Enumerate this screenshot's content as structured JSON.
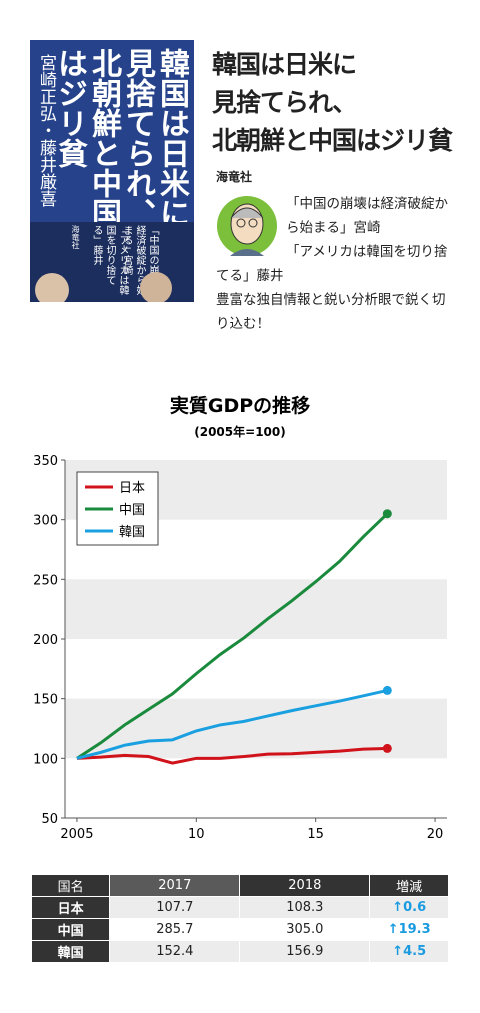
{
  "book": {
    "title": "韓国は日米に見捨てられ、北朝鮮と中国はジリ貧",
    "authors": "宮崎正弘・藤井厳喜",
    "quote_1": "「中国の崩壊は経済破綻から始まる」宮崎",
    "quote_2": "「アメリカは韓国を切り捨てる」藤井",
    "publisher": "海竜社"
  },
  "heading": {
    "title_lines": [
      "韓国は日米に",
      "見捨てられ、",
      "北朝鮮と中国はジリ貧"
    ],
    "publisher": "海竜社"
  },
  "description": {
    "lines": [
      "「中国の崩壊は経済破綻から始まる」宮崎",
      "「アメリカは韓国を切り捨てる」藤井",
      "豊富な独自情報と鋭い分析眼で鋭く切り込む！"
    ]
  },
  "chart_data": {
    "type": "line",
    "title": "実質GDPの推移",
    "subtitle": "(2005年=100)",
    "x": [
      2005,
      2006,
      2007,
      2008,
      2009,
      2010,
      2011,
      2012,
      2013,
      2014,
      2015,
      2016,
      2017,
      2018
    ],
    "series": [
      {
        "name": "日本",
        "color": "#d0121b",
        "values": [
          100,
          101,
          102.5,
          101.5,
          96,
          100,
          100,
          101.5,
          103.5,
          103.8,
          105,
          106,
          107.7,
          108.3
        ]
      },
      {
        "name": "中国",
        "color": "#1a8a3c",
        "values": [
          100,
          113,
          128,
          141,
          154,
          171,
          187,
          201,
          217,
          232,
          248,
          265,
          285.7,
          305.0
        ]
      },
      {
        "name": "韓国",
        "color": "#1aa0e0",
        "values": [
          100,
          105,
          111,
          114.5,
          115.5,
          123,
          128,
          131,
          135.5,
          140,
          144,
          148,
          152.4,
          156.9
        ]
      }
    ],
    "xlim": [
      2004.5,
      2020.5
    ],
    "xticks": [
      2005,
      {
        "value": 2010,
        "label": "10"
      },
      {
        "value": 2015,
        "label": "15"
      },
      {
        "value": 2020,
        "label": "20"
      }
    ],
    "ylim": [
      50,
      350
    ],
    "yticks": [
      50,
      100,
      150,
      200,
      250,
      300,
      350
    ],
    "grid": "bands",
    "legend": "top-left"
  },
  "table": {
    "header": [
      "国名",
      "2017",
      "2018",
      "増減"
    ],
    "rows": [
      [
        "日本",
        "107.7",
        "108.3",
        "↑0.6"
      ],
      [
        "中国",
        "285.7",
        "305.0",
        "↑19.3"
      ],
      [
        "韓国",
        "152.4",
        "156.9",
        "↑4.5"
      ]
    ]
  }
}
